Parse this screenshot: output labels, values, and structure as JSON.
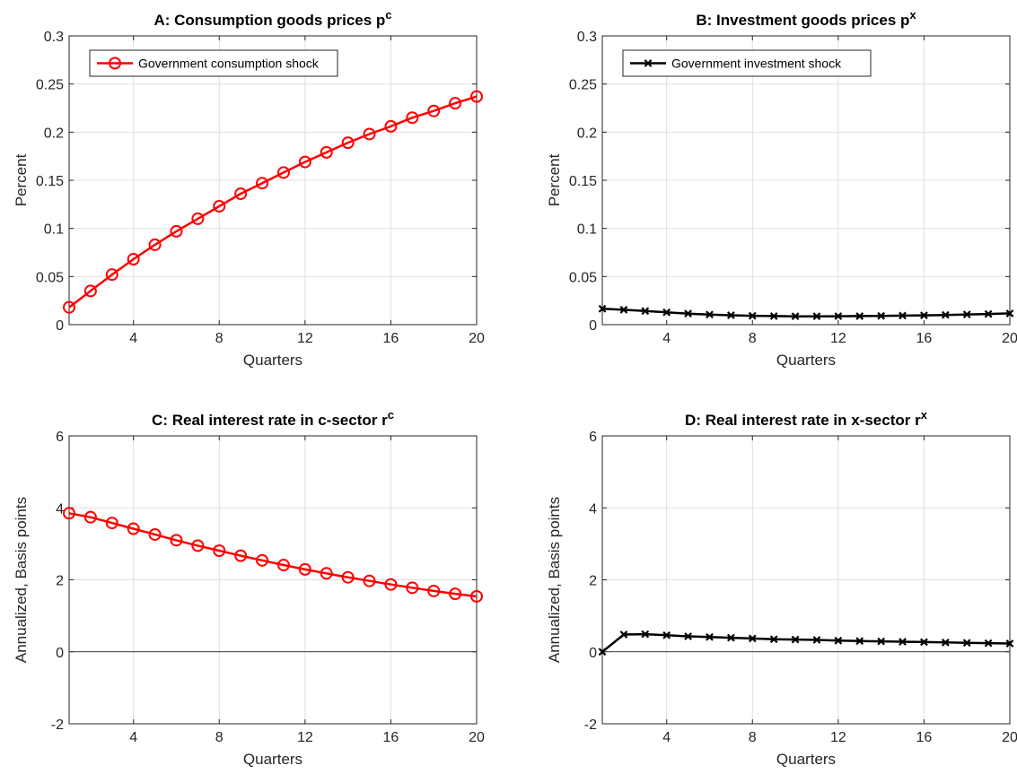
{
  "chart_data": [
    {
      "type": "line",
      "title": "A: Consumption goods prices p",
      "title_superscript": "c",
      "xlabel": "Quarters",
      "ylabel": "Percent",
      "xlim": [
        1,
        20
      ],
      "ylim": [
        0,
        0.3
      ],
      "xticks": [
        4,
        8,
        12,
        16,
        20
      ],
      "yticks": [
        0,
        0.05,
        0.1,
        0.15,
        0.2,
        0.25,
        0.3
      ],
      "ytick_labels": [
        "0",
        "0.05",
        "0.1",
        "0.15",
        "0.2",
        "0.25",
        "0.3"
      ],
      "grid": true,
      "zero_line": false,
      "legend": {
        "position": "top-left",
        "entries": [
          "Government consumption shock"
        ]
      },
      "series": [
        {
          "name": "Government consumption shock",
          "color": "#ff0000",
          "marker": "circle",
          "x": [
            1,
            2,
            3,
            4,
            5,
            6,
            7,
            8,
            9,
            10,
            11,
            12,
            13,
            14,
            15,
            16,
            17,
            18,
            19,
            20
          ],
          "values": [
            0.018,
            0.035,
            0.052,
            0.068,
            0.083,
            0.097,
            0.11,
            0.123,
            0.136,
            0.147,
            0.158,
            0.169,
            0.179,
            0.189,
            0.198,
            0.206,
            0.215,
            0.222,
            0.23,
            0.237
          ]
        }
      ]
    },
    {
      "type": "line",
      "title": "B: Investment goods prices p",
      "title_superscript": "x",
      "xlabel": "Quarters",
      "ylabel": "Percent",
      "xlim": [
        1,
        20
      ],
      "ylim": [
        0,
        0.3
      ],
      "xticks": [
        4,
        8,
        12,
        16,
        20
      ],
      "yticks": [
        0,
        0.05,
        0.1,
        0.15,
        0.2,
        0.25,
        0.3
      ],
      "ytick_labels": [
        "0",
        "0.05",
        "0.1",
        "0.15",
        "0.2",
        "0.25",
        "0.3"
      ],
      "grid": true,
      "zero_line": false,
      "legend": {
        "position": "top-left",
        "entries": [
          "Government investment shock"
        ]
      },
      "series": [
        {
          "name": "Government investment shock",
          "color": "#000000",
          "marker": "x",
          "x": [
            1,
            2,
            3,
            4,
            5,
            6,
            7,
            8,
            9,
            10,
            11,
            12,
            13,
            14,
            15,
            16,
            17,
            18,
            19,
            20
          ],
          "values": [
            0.0165,
            0.0155,
            0.0142,
            0.0128,
            0.0115,
            0.0105,
            0.0098,
            0.0092,
            0.0089,
            0.0087,
            0.0087,
            0.0088,
            0.0089,
            0.0091,
            0.0094,
            0.0097,
            0.0101,
            0.0106,
            0.0111,
            0.0117
          ]
        }
      ]
    },
    {
      "type": "line",
      "title": "C: Real interest rate in c-sector r",
      "title_superscript": "c",
      "xlabel": "Quarters",
      "ylabel": "Annualized, Basis points",
      "xlim": [
        1,
        20
      ],
      "ylim": [
        -2,
        6
      ],
      "xticks": [
        4,
        8,
        12,
        16,
        20
      ],
      "yticks": [
        -2,
        0,
        2,
        4,
        6
      ],
      "ytick_labels": [
        "-2",
        "0",
        "2",
        "4",
        "6"
      ],
      "grid": true,
      "zero_line": true,
      "legend": null,
      "series": [
        {
          "name": "Government consumption shock",
          "color": "#ff0000",
          "marker": "circle",
          "x": [
            1,
            2,
            3,
            4,
            5,
            6,
            7,
            8,
            9,
            10,
            11,
            12,
            13,
            14,
            15,
            16,
            17,
            18,
            19,
            20
          ],
          "values": [
            3.85,
            3.74,
            3.58,
            3.42,
            3.26,
            3.1,
            2.95,
            2.81,
            2.67,
            2.54,
            2.41,
            2.29,
            2.18,
            2.07,
            1.97,
            1.87,
            1.78,
            1.69,
            1.61,
            1.54
          ]
        }
      ]
    },
    {
      "type": "line",
      "title": "D: Real interest rate in x-sector r",
      "title_superscript": "x",
      "xlabel": "Quarters",
      "ylabel": "Annualized, Basis points",
      "xlim": [
        1,
        20
      ],
      "ylim": [
        -2,
        6
      ],
      "xticks": [
        4,
        8,
        12,
        16,
        20
      ],
      "yticks": [
        -2,
        0,
        2,
        4,
        6
      ],
      "ytick_labels": [
        "-2",
        "0",
        "2",
        "4",
        "6"
      ],
      "grid": true,
      "zero_line": true,
      "legend": null,
      "series": [
        {
          "name": "Government investment shock",
          "color": "#000000",
          "marker": "x",
          "x": [
            1,
            2,
            3,
            4,
            5,
            6,
            7,
            8,
            9,
            10,
            11,
            12,
            13,
            14,
            15,
            16,
            17,
            18,
            19,
            20
          ],
          "values": [
            0.0,
            0.48,
            0.49,
            0.46,
            0.43,
            0.41,
            0.39,
            0.37,
            0.35,
            0.34,
            0.33,
            0.31,
            0.3,
            0.29,
            0.28,
            0.27,
            0.26,
            0.25,
            0.24,
            0.23
          ]
        }
      ]
    }
  ]
}
